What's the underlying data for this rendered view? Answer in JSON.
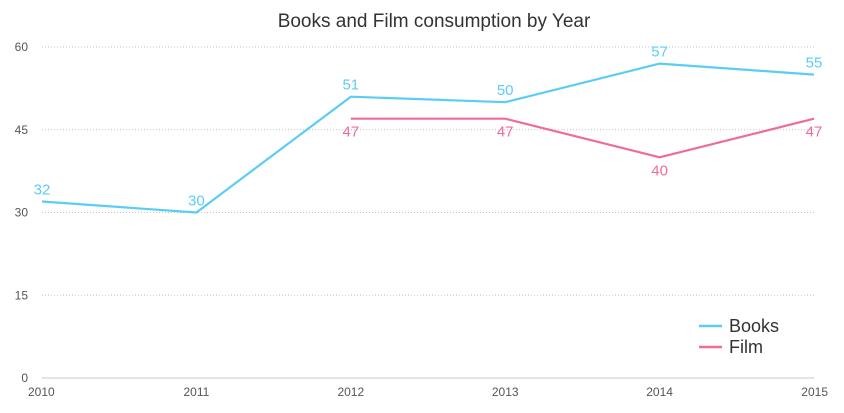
{
  "chart_data": {
    "type": "line",
    "title": "Books and Film consumption by Year",
    "xlabel": "",
    "ylabel": "",
    "x": [
      "2010",
      "2011",
      "2012",
      "2013",
      "2014",
      "2015"
    ],
    "ylim": [
      0,
      60
    ],
    "yticks": [
      "0",
      "15",
      "30",
      "45",
      "60"
    ],
    "grid": true,
    "legend_position": "bottom-right",
    "series": [
      {
        "name": "Books",
        "color": "#5bcdf5",
        "values": [
          32,
          30,
          51,
          50,
          57,
          55
        ]
      },
      {
        "name": "Film",
        "color": "#ef6b9b",
        "values": [
          null,
          null,
          47,
          47,
          40,
          47
        ]
      }
    ]
  }
}
